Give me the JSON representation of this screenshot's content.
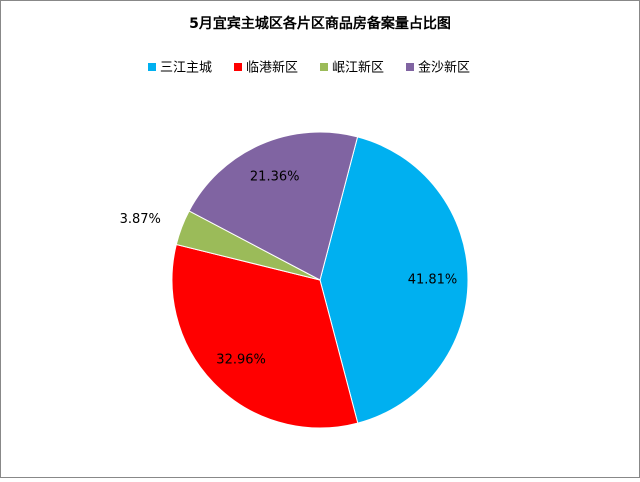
{
  "chart_data": {
    "type": "pie",
    "title": "5月宜宾主城区各片区商品房备案量占比图",
    "categories": [
      "三江主城",
      "临港新区",
      "岷江新区",
      "金沙新区"
    ],
    "values": [
      41.81,
      32.96,
      3.87,
      21.36
    ],
    "value_labels": [
      "41.81%",
      "32.96%",
      "3.87%",
      "21.36%"
    ],
    "colors": [
      "#00b0f0",
      "#ff0000",
      "#9bbb59",
      "#8064a2"
    ],
    "legend": "top"
  }
}
